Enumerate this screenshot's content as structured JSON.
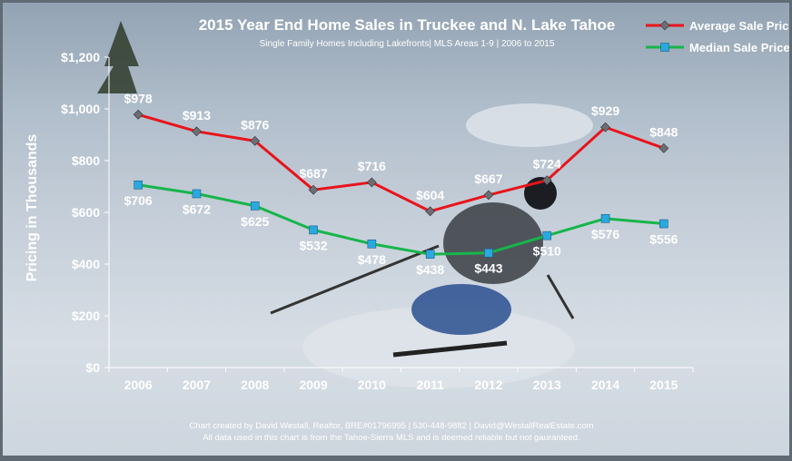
{
  "chart_data": {
    "type": "line",
    "title": "2015 Year End Home Sales in Truckee and N. Lake Tahoe",
    "subtitle": "Single Family Homes Including Lakefronts| MLS Areas 1-9 | 2006 to 2015",
    "xlabel": "",
    "ylabel": "Pricing in Thousands",
    "categories": [
      "2006",
      "2007",
      "2008",
      "2009",
      "2010",
      "2011",
      "2012",
      "2013",
      "2014",
      "2015"
    ],
    "ylim": [
      0,
      1200
    ],
    "yticks": [
      0,
      200,
      400,
      600,
      800,
      1000,
      1200
    ],
    "ytick_labels": [
      "$0",
      "$200",
      "$400",
      "$600",
      "$800",
      "$1,000",
      "$1,200"
    ],
    "grid": false,
    "legend_position": "top-right",
    "series": [
      {
        "name": "Average Sale Price",
        "color": "#e8141b",
        "marker": "diamond",
        "marker_color": "#6d6d73",
        "values": [
          978,
          913,
          876,
          687,
          716,
          604,
          667,
          724,
          929,
          848
        ],
        "labels": [
          "$978",
          "$913",
          "$876",
          "$687",
          "$716",
          "$604",
          "$667",
          "$724",
          "$929",
          "$848"
        ]
      },
      {
        "name": "Median Sale Price",
        "color": "#17b54a",
        "marker": "square",
        "marker_color": "#2aa8e0",
        "values": [
          706,
          672,
          625,
          532,
          478,
          438,
          443,
          510,
          576,
          556
        ],
        "labels": [
          "$706",
          "$672",
          "$625",
          "$532",
          "$478",
          "$438",
          "$443",
          "$510",
          "$576",
          "$556"
        ]
      }
    ],
    "footer": [
      "Chart created by David Westall, Realtor, BRE#01796995 | 530-448-9882 | David@WestallRealEstate.com",
      "All data used in this chart is from the Tahoe-Sierra MLS and is deemed reliable but  not gauranteed."
    ]
  }
}
